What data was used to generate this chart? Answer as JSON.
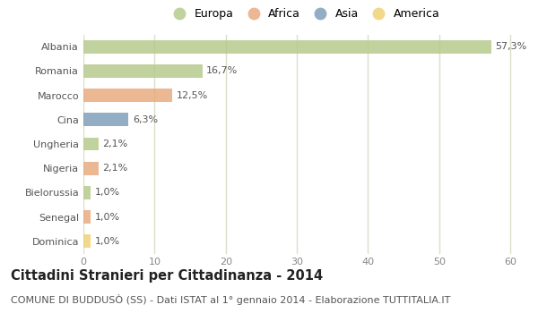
{
  "categories": [
    "Albania",
    "Romania",
    "Marocco",
    "Cina",
    "Ungheria",
    "Nigeria",
    "Bielorussia",
    "Senegal",
    "Dominica"
  ],
  "values": [
    57.3,
    16.7,
    12.5,
    6.3,
    2.1,
    2.1,
    1.0,
    1.0,
    1.0
  ],
  "labels": [
    "57,3%",
    "16,7%",
    "12,5%",
    "6,3%",
    "2,1%",
    "2,1%",
    "1,0%",
    "1,0%",
    "1,0%"
  ],
  "continents": [
    "Europa",
    "Europa",
    "Africa",
    "Asia",
    "Europa",
    "Africa",
    "Europa",
    "Africa",
    "America"
  ],
  "colors": {
    "Europa": "#b5c98a",
    "Africa": "#e8a87c",
    "Asia": "#7b9cb8",
    "America": "#f0d070"
  },
  "legend_order": [
    "Europa",
    "Africa",
    "Asia",
    "America"
  ],
  "title": "Cittadini Stranieri per Cittadinanza - 2014",
  "subtitle": "COMUNE DI BUDDUSÒ (SS) - Dati ISTAT al 1° gennaio 2014 - Elaborazione TUTTITALIA.IT",
  "xlim": [
    0,
    62
  ],
  "xticks": [
    0,
    10,
    20,
    30,
    40,
    50,
    60
  ],
  "background_color": "#ffffff",
  "plot_bg_color": "#ffffff",
  "grid_color": "#d8e0c8",
  "bar_height": 0.55,
  "title_fontsize": 10.5,
  "subtitle_fontsize": 8,
  "label_fontsize": 8,
  "tick_fontsize": 8,
  "legend_fontsize": 9
}
